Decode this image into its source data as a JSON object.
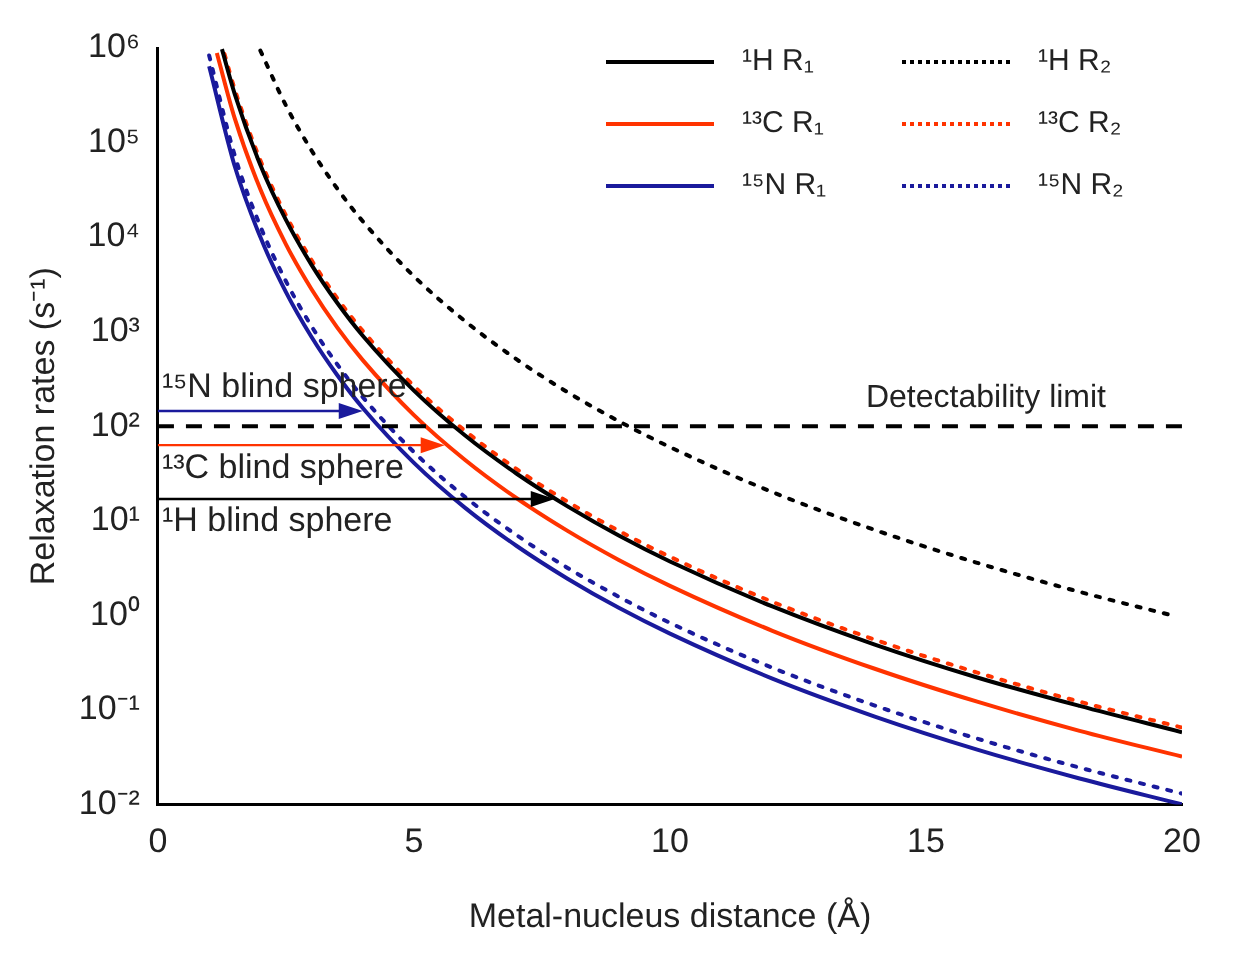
{
  "chart_data": {
    "type": "line",
    "xlabel": "Metal-nucleus distance (Å)",
    "ylabel": "Relaxation rates (s⁻¹)",
    "xlim": [
      0,
      20
    ],
    "xticks": [
      0,
      5,
      10,
      15,
      20
    ],
    "ylim": [
      0.01,
      1000000
    ],
    "log": "y",
    "grid": false,
    "legend": "top right",
    "marker": "none",
    "yticks": [
      {
        "value": 0.01,
        "label": "10⁻²"
      },
      {
        "value": 0.1,
        "label": "10⁻¹"
      },
      {
        "value": 1,
        "label": "10⁰"
      },
      {
        "value": 10,
        "label": "10¹"
      },
      {
        "value": 100,
        "label": "10²"
      },
      {
        "value": 1000,
        "label": "10³"
      },
      {
        "value": 10000,
        "label": "10⁴"
      },
      {
        "value": 100000,
        "label": "10⁵"
      },
      {
        "value": 1000000,
        "label": "10⁶"
      }
    ],
    "series": [
      {
        "name": "¹H R₁",
        "color": "#000000",
        "line_style": "solid",
        "x": [
          1.25,
          1.5,
          2,
          2.5,
          3,
          3.5,
          4,
          5,
          6,
          7,
          8,
          9,
          10,
          12,
          14,
          16,
          18,
          20
        ],
        "values": [
          973000,
          326000,
          58000,
          15200,
          5090,
          2020,
          906,
          238,
          79.6,
          31.6,
          14.2,
          6.98,
          3.71,
          1.24,
          0.49,
          0.22,
          0.11,
          0.058
        ]
      },
      {
        "name": "¹³C R₁",
        "color": "#ff3300",
        "line_style": "solid",
        "x": [
          1.15,
          1.5,
          2,
          2.5,
          3,
          3.5,
          4,
          5,
          6,
          7,
          8,
          9,
          10,
          12,
          14,
          16,
          18,
          20
        ],
        "values": [
          885000,
          180000,
          32000,
          8390,
          2810,
          1110,
          500,
          131,
          43.9,
          17.4,
          7.81,
          3.85,
          2.05,
          0.686,
          0.272,
          0.122,
          0.06,
          0.032
        ]
      },
      {
        "name": "¹⁵N R₁",
        "color": "#1a1a9c",
        "line_style": "solid",
        "x": [
          1,
          1.5,
          2,
          2.5,
          3,
          3.5,
          4,
          5,
          6,
          7,
          8,
          9,
          10,
          12,
          14,
          16,
          18,
          20
        ],
        "values": [
          640000,
          56200,
          10000,
          2620,
          878,
          348,
          156,
          41,
          13.7,
          5.44,
          2.44,
          1.2,
          0.64,
          0.214,
          0.085,
          0.038,
          0.0188,
          0.01
        ]
      },
      {
        "name": "¹H R₂",
        "color": "#000000",
        "line_style": "dotted",
        "x": [
          2,
          2.5,
          3,
          3.5,
          4,
          5,
          6,
          7,
          8,
          9,
          10,
          12,
          14,
          16,
          18,
          19.8
        ],
        "values": [
          940000,
          246000,
          82500,
          32700,
          14700,
          3850,
          1290,
          511,
          229,
          113,
          60.2,
          20.1,
          7.99,
          3.59,
          1.77,
          1.0
        ]
      },
      {
        "name": "¹³C R₂",
        "color": "#ff3300",
        "line_style": "dotted",
        "x": [
          1.3,
          1.5,
          2,
          2.5,
          3,
          3.5,
          4,
          5,
          6,
          7,
          8,
          9,
          10,
          12,
          14,
          16,
          18,
          20
        ],
        "values": [
          862000,
          365000,
          65000,
          17000,
          5710,
          2260,
          1020,
          266,
          89.2,
          35.4,
          15.9,
          7.83,
          4.16,
          1.39,
          0.553,
          0.248,
          0.122,
          0.065
        ]
      },
      {
        "name": "¹⁵N R₂",
        "color": "#1a1a9c",
        "line_style": "dotted",
        "x": [
          1,
          1.5,
          2,
          2.5,
          3,
          3.5,
          4,
          5,
          6,
          7,
          8,
          9,
          10,
          12,
          14,
          16,
          18,
          20
        ],
        "values": [
          832000,
          73000,
          13000,
          3410,
          1140,
          452,
          203,
          53.2,
          17.8,
          7.07,
          3.17,
          1.57,
          0.832,
          0.279,
          0.111,
          0.0496,
          0.0245,
          0.013
        ]
      }
    ],
    "ref_lines": [
      {
        "axis": "y",
        "value": 100,
        "label": "Detectability limit",
        "color": "#000000",
        "line_style": "dashed"
      }
    ],
    "annotations": [
      {
        "text": "¹⁵N blind sphere",
        "x": 4,
        "y": 145
      },
      {
        "text": "¹³C blind sphere",
        "x": 5.6,
        "y": 63
      },
      {
        "text": "¹H blind sphere",
        "x": 7.75,
        "y": 17
      }
    ]
  }
}
